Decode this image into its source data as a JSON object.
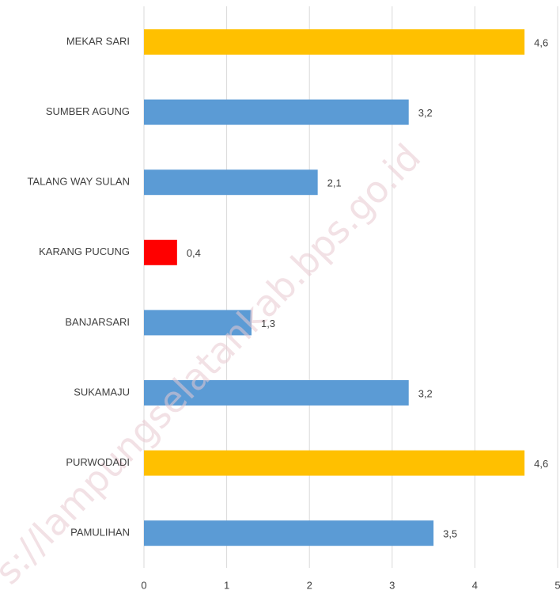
{
  "chart_data": {
    "type": "bar",
    "orientation": "horizontal",
    "categories": [
      "MEKAR SARI",
      "SUMBER AGUNG",
      "TALANG WAY SULAN",
      "KARANG PUCUNG",
      "BANJARSARI",
      "SUKAMAJU",
      "PURWODADI",
      "PAMULIHAN"
    ],
    "values": [
      4.6,
      3.2,
      2.1,
      0.4,
      1.3,
      3.2,
      4.6,
      3.5
    ],
    "value_labels": [
      "4,6",
      "3,2",
      "2,1",
      "0,4",
      "1,3",
      "3,2",
      "4,6",
      "3,5"
    ],
    "colors": [
      "#ffc000",
      "#5b9bd5",
      "#5b9bd5",
      "#ff0000",
      "#5b9bd5",
      "#5b9bd5",
      "#ffc000",
      "#5b9bd5"
    ],
    "xlim": [
      0,
      5
    ],
    "xticks": [
      0,
      1,
      2,
      3,
      4,
      5
    ],
    "grid": true,
    "watermark": "s://lampungselatankab.bps.go.id"
  }
}
